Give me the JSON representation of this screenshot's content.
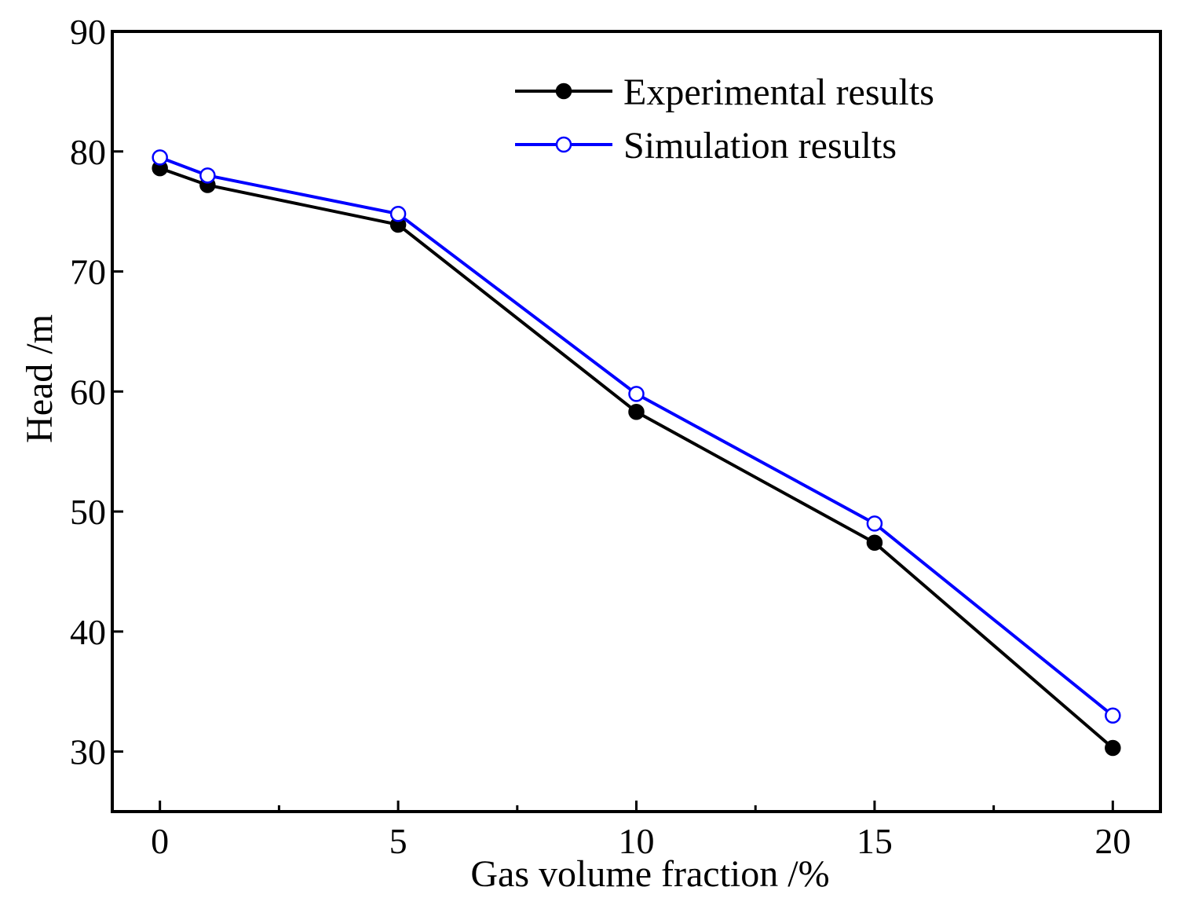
{
  "chart_data": {
    "type": "line",
    "title": "",
    "xlabel": "Gas volume fraction   /%",
    "ylabel": "Head  /m",
    "xlim": [
      -1,
      21
    ],
    "ylim": [
      25,
      90
    ],
    "xticks": [
      0,
      5,
      10,
      15,
      20
    ],
    "xtick_labels": [
      "0",
      "5",
      "10",
      "15",
      "20"
    ],
    "x_minor_ticks": [
      2.5,
      7.5,
      12.5,
      17.5
    ],
    "yticks": [
      30,
      40,
      50,
      60,
      70,
      80,
      90
    ],
    "ytick_labels": [
      "30",
      "40",
      "50",
      "60",
      "70",
      "80",
      "90"
    ],
    "grid": false,
    "legend_position": "top-right",
    "series": [
      {
        "name": "Experimental results",
        "color": "#000000",
        "marker": "filled-circle",
        "x": [
          0,
          1,
          5,
          10,
          15,
          20
        ],
        "y": [
          78.6,
          77.2,
          73.9,
          58.3,
          47.4,
          30.3
        ]
      },
      {
        "name": "Simulation results",
        "color": "#0000ff",
        "marker": "open-circle",
        "x": [
          0,
          1,
          5,
          10,
          15,
          20
        ],
        "y": [
          79.5,
          78.0,
          74.8,
          59.8,
          49.0,
          33.0
        ]
      }
    ]
  }
}
